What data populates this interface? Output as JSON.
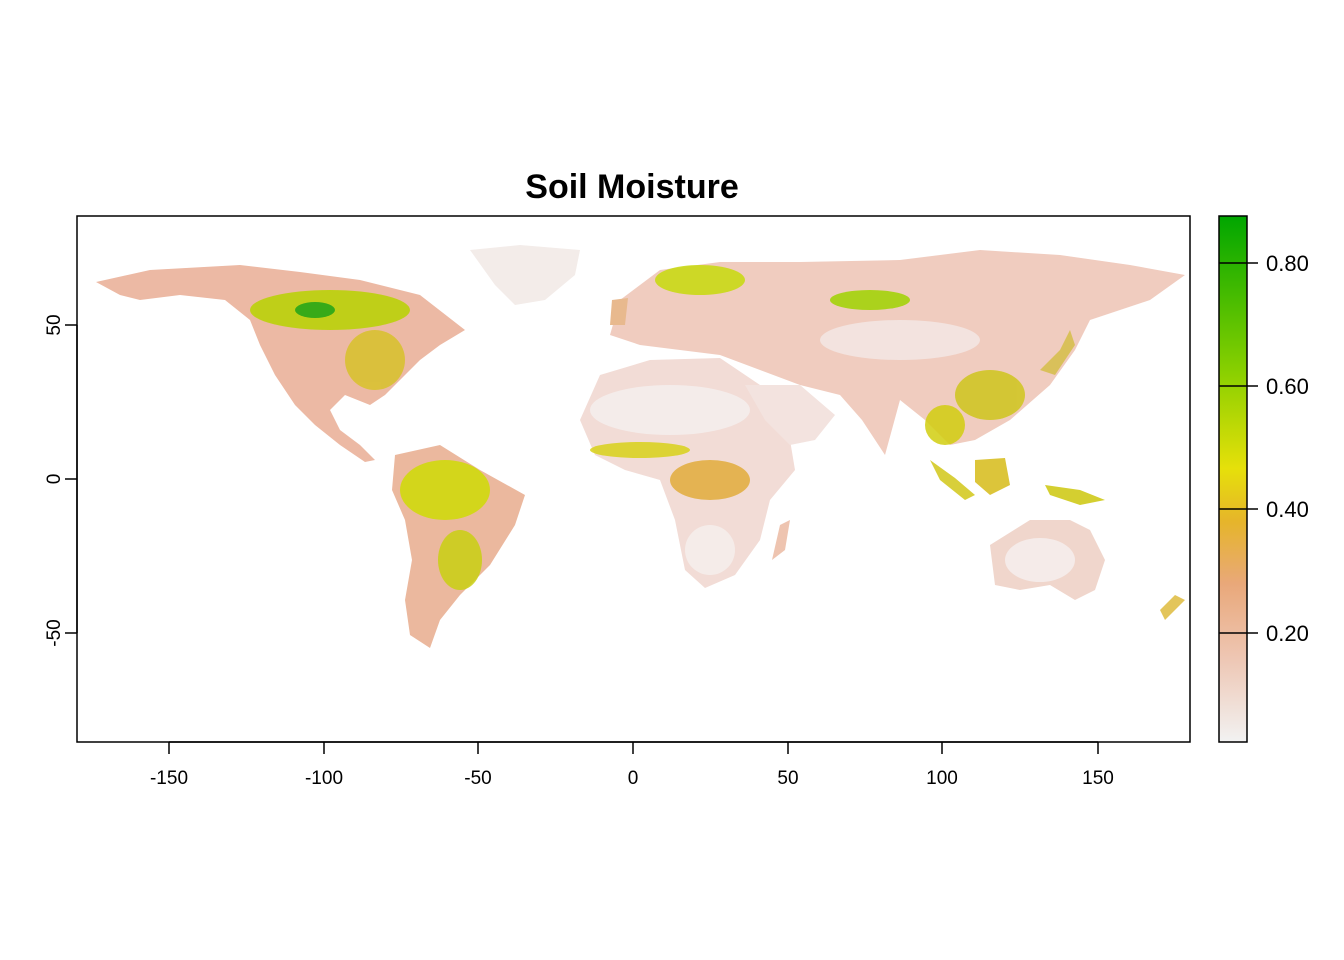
{
  "map": {
    "title": "Soil Moisture",
    "projection": "longitude-latitude",
    "x_range": [
      -180,
      180
    ],
    "y_range": [
      -90,
      90
    ],
    "x_ticks": [
      {
        "value": -150,
        "label": "-150"
      },
      {
        "value": -100,
        "label": "-100"
      },
      {
        "value": -50,
        "label": "-50"
      },
      {
        "value": 0,
        "label": "0"
      },
      {
        "value": 50,
        "label": "50"
      },
      {
        "value": 100,
        "label": "100"
      },
      {
        "value": 150,
        "label": "150"
      }
    ],
    "y_ticks": [
      {
        "value": -50,
        "label": "-50"
      },
      {
        "value": 0,
        "label": "0"
      },
      {
        "value": 50,
        "label": "50"
      }
    ],
    "colors": {
      "water": "#ffffff",
      "frame": "#000000",
      "low": "#f2f2f2",
      "mid_low": "#edb48b",
      "mid": "#e6dc0a",
      "high": "#00a600"
    },
    "legend": {
      "placement": "right",
      "range": [
        0.02,
        0.87
      ],
      "gradient": [
        "#f2f2f2",
        "#eec6b3",
        "#e9a87a",
        "#e6b52a",
        "#e6e00a",
        "#8bd000",
        "#00a600"
      ],
      "ticks": [
        {
          "value": 0.2,
          "label": "0.20"
        },
        {
          "value": 0.4,
          "label": "0.40"
        },
        {
          "value": 0.6,
          "label": "0.60"
        },
        {
          "value": 0.8,
          "label": "0.80"
        }
      ]
    }
  }
}
